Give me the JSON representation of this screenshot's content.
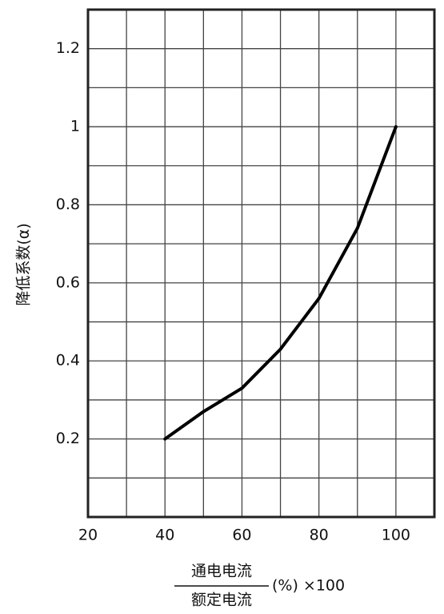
{
  "chart_data": {
    "type": "line",
    "y_label": "降低系数(α)",
    "x_label_numerator": "通电电流",
    "x_label_denominator": "额定电流",
    "x_label_suffix": "(%) ×100",
    "x": [
      40,
      50,
      60,
      70,
      80,
      90,
      100
    ],
    "series": [
      {
        "color": "#000000",
        "values": [
          0.2,
          0.27,
          0.33,
          0.43,
          0.56,
          0.74,
          1
        ]
      }
    ],
    "xlim": [
      20,
      110
    ],
    "xticks": [
      20,
      40,
      60,
      80,
      100
    ],
    "x_minor_ticks": [
      30,
      50,
      70,
      90
    ],
    "ylim": [
      0,
      1.3
    ],
    "yticks": [
      0.2,
      0.4,
      0.6,
      0.8,
      1,
      1.2
    ],
    "y_minor_ticks": [
      0.1,
      0.3,
      0.5,
      0.7,
      0.9,
      1.1
    ],
    "grid": true
  }
}
